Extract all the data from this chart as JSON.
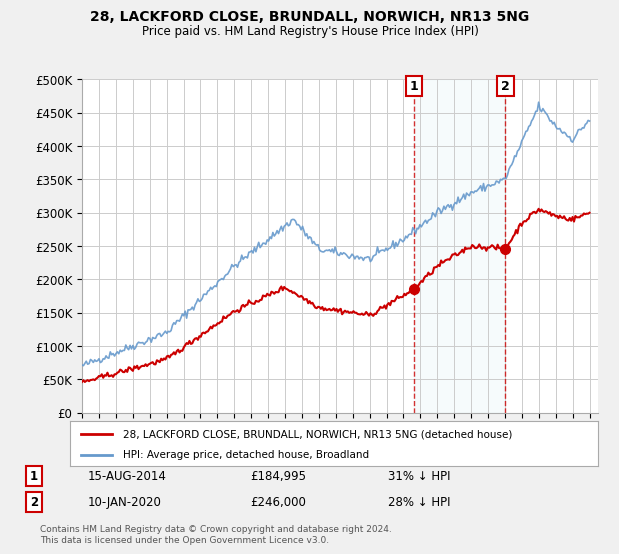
{
  "title": "28, LACKFORD CLOSE, BRUNDALL, NORWICH, NR13 5NG",
  "subtitle": "Price paid vs. HM Land Registry's House Price Index (HPI)",
  "ylim": [
    0,
    500000
  ],
  "xlim_start": 1995.0,
  "xlim_end": 2025.5,
  "legend_line1": "28, LACKFORD CLOSE, BRUNDALL, NORWICH, NR13 5NG (detached house)",
  "legend_line2": "HPI: Average price, detached house, Broadland",
  "annotation1_date": "15-AUG-2014",
  "annotation1_price": "£184,995",
  "annotation1_hpi": "31% ↓ HPI",
  "annotation2_date": "10-JAN-2020",
  "annotation2_price": "£246,000",
  "annotation2_hpi": "28% ↓ HPI",
  "footer": "Contains HM Land Registry data © Crown copyright and database right 2024.\nThis data is licensed under the Open Government Licence v3.0.",
  "sale1_x": 2014.62,
  "sale1_y": 184995,
  "sale2_x": 2020.03,
  "sale2_y": 246000,
  "red_line_color": "#cc0000",
  "blue_line_color": "#6699cc",
  "vline1_x": 2014.62,
  "vline2_x": 2020.03
}
